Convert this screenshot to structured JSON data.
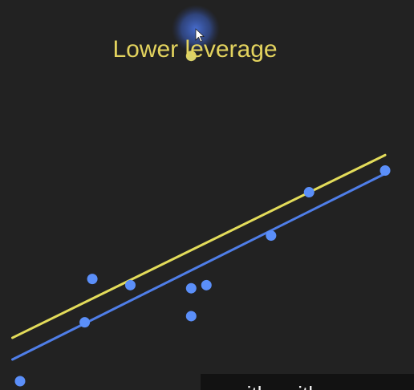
{
  "chart_data": {
    "type": "scatter",
    "title": "Lower leverage",
    "xlim": [
      0,
      10
    ],
    "ylim": [
      0,
      10
    ],
    "grid": false,
    "legend": "none",
    "points": [
      {
        "x": 0.0,
        "y": 0.0
      },
      {
        "x": 1.7,
        "y": 1.9
      },
      {
        "x": 1.9,
        "y": 3.3
      },
      {
        "x": 2.9,
        "y": 3.1
      },
      {
        "x": 4.5,
        "y": 2.1
      },
      {
        "x": 4.5,
        "y": 3.0
      },
      {
        "x": 4.9,
        "y": 3.1
      },
      {
        "x": 6.6,
        "y": 4.7
      },
      {
        "x": 7.6,
        "y": 6.1
      },
      {
        "x": 9.6,
        "y": 6.8
      }
    ],
    "high_point": {
      "x": 4.5,
      "y": 10.5
    },
    "series": [
      {
        "line": "yellow",
        "x": [
          -0.2,
          9.6
        ],
        "y": [
          1.4,
          7.3
        ]
      },
      {
        "line": "blue",
        "x": [
          -0.2,
          9.6
        ],
        "y": [
          0.7,
          6.7
        ]
      }
    ]
  },
  "colors": {
    "background": "#222222",
    "point": "#5b8ff9",
    "high_point": "#d9d26a",
    "yellow_line": "#e3dc5a",
    "blue_line": "#4f7ee8",
    "title": "#e3d35e",
    "cursor_glow": "#3d63c9"
  },
  "icons": {
    "cursor": "mouse-pointer-icon"
  },
  "caption": {
    "text": "...ith ... ith"
  }
}
